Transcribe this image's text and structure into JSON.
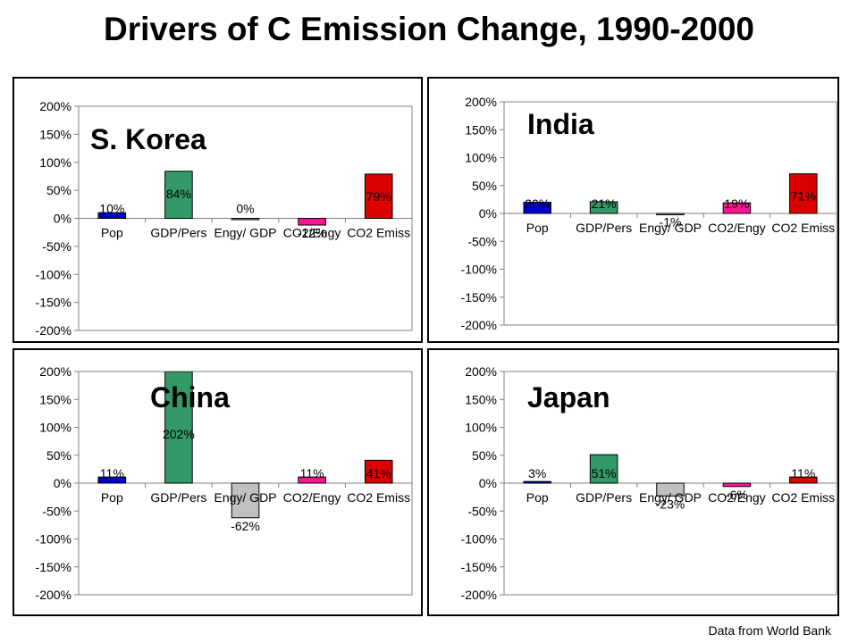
{
  "title": "Drivers of C Emission Change, 1990-2000",
  "footer": "Data from World Bank",
  "colors": [
    "#0000cc",
    "#339966",
    "#c0c0c0",
    "#ff1493",
    "#dd0000"
  ],
  "chart_data": [
    {
      "type": "bar",
      "title": "S. Korea",
      "categories": [
        "Pop",
        "GDP/Pers",
        "Engy/ GDP",
        "CO2/Engy",
        "CO2 Emiss"
      ],
      "values": [
        10,
        84,
        0,
        -12,
        79
      ],
      "labels": [
        "10%",
        "84%",
        "0%",
        "-12%",
        "79%"
      ],
      "ylim": [
        -200,
        200
      ],
      "yticks": [
        "200%",
        "150%",
        "100%",
        "50%",
        "0%",
        "-50%",
        "-100%",
        "-150%",
        "-200%"
      ],
      "xlabel": "",
      "ylabel": ""
    },
    {
      "type": "bar",
      "title": "India",
      "categories": [
        "Pop",
        "GDP/Pers",
        "Engy/ GDP",
        "CO2/Engy",
        "CO2 Emiss"
      ],
      "values": [
        20,
        21,
        -1,
        19,
        71
      ],
      "labels": [
        "20%",
        "21%",
        "-1%",
        "19%",
        "71%"
      ],
      "ylim": [
        -200,
        200
      ],
      "yticks": [
        "200%",
        "150%",
        "100%",
        "50%",
        "0%",
        "-50%",
        "-100%",
        "-150%",
        "-200%"
      ],
      "xlabel": "",
      "ylabel": ""
    },
    {
      "type": "bar",
      "title": "China",
      "categories": [
        "Pop",
        "GDP/Pers",
        "Engy/ GDP",
        "CO2/Engy",
        "CO2 Emiss"
      ],
      "values": [
        11,
        202,
        -62,
        11,
        41
      ],
      "labels": [
        "11%",
        "202%",
        "-62%",
        "11%",
        "41%"
      ],
      "ylim": [
        -200,
        200
      ],
      "yticks": [
        "200%",
        "150%",
        "100%",
        "50%",
        "0%",
        "-50%",
        "-100%",
        "-150%",
        "-200%"
      ],
      "xlabel": "",
      "ylabel": ""
    },
    {
      "type": "bar",
      "title": "Japan",
      "categories": [
        "Pop",
        "GDP/Pers",
        "Engy/ GDP",
        "CO2/Engy",
        "CO2 Emiss"
      ],
      "values": [
        3,
        51,
        -23,
        -6,
        11
      ],
      "labels": [
        "3%",
        "51%",
        "-23%",
        "-6%",
        "11%"
      ],
      "ylim": [
        -200,
        200
      ],
      "yticks": [
        "200%",
        "150%",
        "100%",
        "50%",
        "0%",
        "-50%",
        "-100%",
        "-150%",
        "-200%"
      ],
      "xlabel": "",
      "ylabel": ""
    }
  ]
}
